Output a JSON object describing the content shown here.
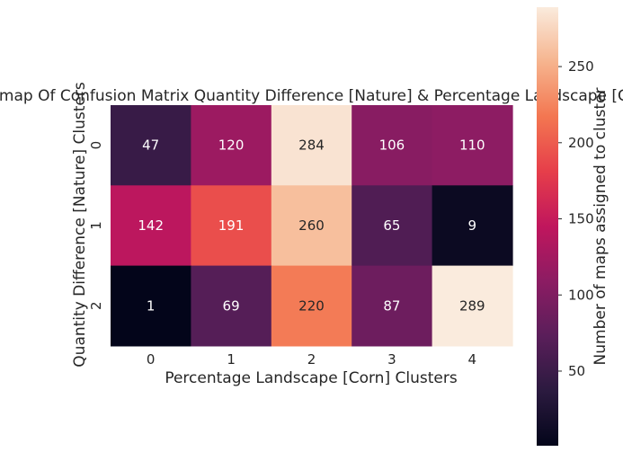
{
  "chart_data": {
    "type": "heatmap",
    "title": "Heatmap Of Confusion Matrix Quantity Difference [Nature] & Percentage Landscape [Corn]",
    "xlabel": "Percentage Landscape [Corn] Clusters",
    "ylabel": "Quantity Difference [Nature] Clusters",
    "x_categories": [
      "0",
      "1",
      "2",
      "3",
      "4"
    ],
    "y_categories": [
      "0",
      "1",
      "2"
    ],
    "values": [
      [
        47,
        120,
        284,
        106,
        110
      ],
      [
        142,
        191,
        260,
        65,
        9
      ],
      [
        1,
        69,
        220,
        87,
        289
      ]
    ],
    "colormap": "rocket",
    "colorbar": {
      "label": "Number of maps assigned to cluster",
      "range": [
        1,
        289
      ],
      "ticks": [
        50,
        100,
        150,
        200,
        250
      ]
    }
  }
}
